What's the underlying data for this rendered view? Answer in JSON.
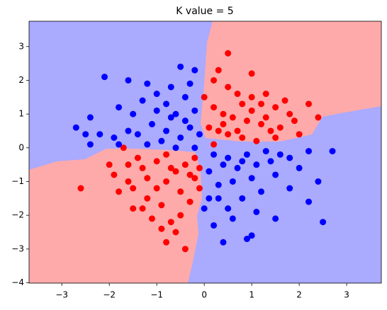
{
  "chart_data": {
    "type": "scatter",
    "title": "K value = 5",
    "xlim": [
      -3.69,
      3.73
    ],
    "ylim": [
      -4.01,
      3.75
    ],
    "xticks": [
      {
        "value": -3,
        "label": "−3"
      },
      {
        "value": -2,
        "label": "−2"
      },
      {
        "value": -1,
        "label": "−1"
      },
      0,
      1,
      2,
      3
    ],
    "yticks": [
      {
        "value": -4,
        "label": "−4"
      },
      {
        "value": -3,
        "label": "−3"
      },
      {
        "value": -2,
        "label": "−2"
      },
      {
        "value": -1,
        "label": "−1"
      },
      0,
      1,
      2,
      3
    ],
    "series": [
      {
        "color": "#ff0000",
        "x": [
          0.5,
          0.3,
          0.2,
          1.0,
          0.5,
          0.7,
          1.0,
          1.3,
          1.5,
          2.2,
          1.8,
          2.4,
          0.2,
          0.4,
          0.6,
          0.9,
          1.2,
          1.4,
          1.6,
          0.1,
          0.3,
          0.5,
          0.8,
          1.1,
          1.5,
          2.0,
          0.2,
          0.7,
          1.0,
          1.3,
          0.0,
          0.8,
          1.7,
          1.9,
          0.4,
          1.2,
          -2.6,
          -2.0,
          -1.9,
          -1.6,
          -1.8,
          -1.5,
          -1.2,
          -1.0,
          -0.8,
          -0.6,
          -0.4,
          -0.2,
          -1.3,
          -1.0,
          -0.8,
          -1.4,
          -1.7,
          -1.2,
          -0.9,
          -0.7,
          -0.5,
          -0.3,
          -0.1,
          -0.6,
          -0.8,
          -0.4,
          -0.2,
          -1.1,
          -0.9,
          -1.5,
          -0.5,
          -0.3,
          -1.6,
          -0.7,
          -1.3,
          -0.1
        ],
        "y": [
          2.8,
          2.3,
          2.0,
          2.2,
          1.8,
          1.6,
          1.5,
          1.6,
          1.2,
          1.3,
          1.0,
          0.9,
          1.2,
          1.0,
          0.9,
          0.8,
          0.7,
          0.5,
          0.6,
          0.6,
          0.5,
          0.4,
          0.3,
          0.2,
          0.3,
          0.4,
          0.1,
          0.5,
          1.1,
          0.9,
          1.5,
          1.3,
          1.4,
          0.8,
          0.7,
          1.3,
          -1.2,
          -0.5,
          -0.8,
          -1.0,
          -1.3,
          -1.8,
          -1.5,
          -1.2,
          -1.0,
          -0.7,
          -0.5,
          -0.3,
          -0.6,
          -0.4,
          -0.2,
          -0.3,
          0.0,
          -0.9,
          -1.7,
          -2.2,
          -2.0,
          -1.6,
          -1.2,
          -2.5,
          -2.8,
          -3.0,
          -0.9,
          -2.1,
          -2.4,
          -1.2,
          -1.3,
          -0.8,
          -0.5,
          -0.6,
          -1.8,
          -0.6
        ]
      },
      {
        "color": "#0000ff",
        "x": [
          -2.1,
          -1.6,
          -1.2,
          -0.5,
          -0.2,
          -0.7,
          -1.0,
          -1.3,
          -0.8,
          -0.4,
          -0.2,
          -1.5,
          -2.4,
          -2.7,
          -2.2,
          -1.9,
          -1.6,
          -1.1,
          -0.7,
          -0.3,
          -0.5,
          -0.9,
          -1.2,
          -0.2,
          -2.4,
          -2.5,
          -1.8,
          -0.6,
          -1.0,
          -0.1,
          -0.4,
          -1.4,
          -0.8,
          -0.3,
          -1.8,
          -0.6,
          0.2,
          0.5,
          0.8,
          1.1,
          1.4,
          1.8,
          2.2,
          2.7,
          2.4,
          2.2,
          2.5,
          1.8,
          1.5,
          1.0,
          0.6,
          0.3,
          0.1,
          0.0,
          0.5,
          0.8,
          1.2,
          0.4,
          1.0,
          0.9,
          0.3,
          0.7,
          1.3,
          0.1,
          0.4,
          1.6,
          2.0,
          0.9,
          1.5,
          0.6,
          0.2,
          1.1
        ],
        "y": [
          2.1,
          2.0,
          1.9,
          2.4,
          2.3,
          1.8,
          1.6,
          1.4,
          1.3,
          1.5,
          1.1,
          1.0,
          0.9,
          0.6,
          0.4,
          0.3,
          0.5,
          0.7,
          0.9,
          0.6,
          0.3,
          0.2,
          0.1,
          0.0,
          0.1,
          0.4,
          1.2,
          1.0,
          1.1,
          0.4,
          0.8,
          0.4,
          0.5,
          1.9,
          0.1,
          0.0,
          -0.2,
          -0.3,
          -0.4,
          -0.5,
          -0.4,
          -0.3,
          -0.1,
          -0.1,
          -1.0,
          -1.6,
          -2.2,
          -1.2,
          -0.8,
          -0.9,
          -1.0,
          -1.1,
          -1.5,
          -1.8,
          -1.8,
          -1.5,
          -1.3,
          -2.8,
          -2.6,
          -2.7,
          -1.5,
          -0.6,
          -0.1,
          -0.7,
          -0.5,
          -0.2,
          -0.6,
          -0.2,
          -2.1,
          -2.1,
          -2.3,
          -1.9
        ]
      }
    ]
  }
}
